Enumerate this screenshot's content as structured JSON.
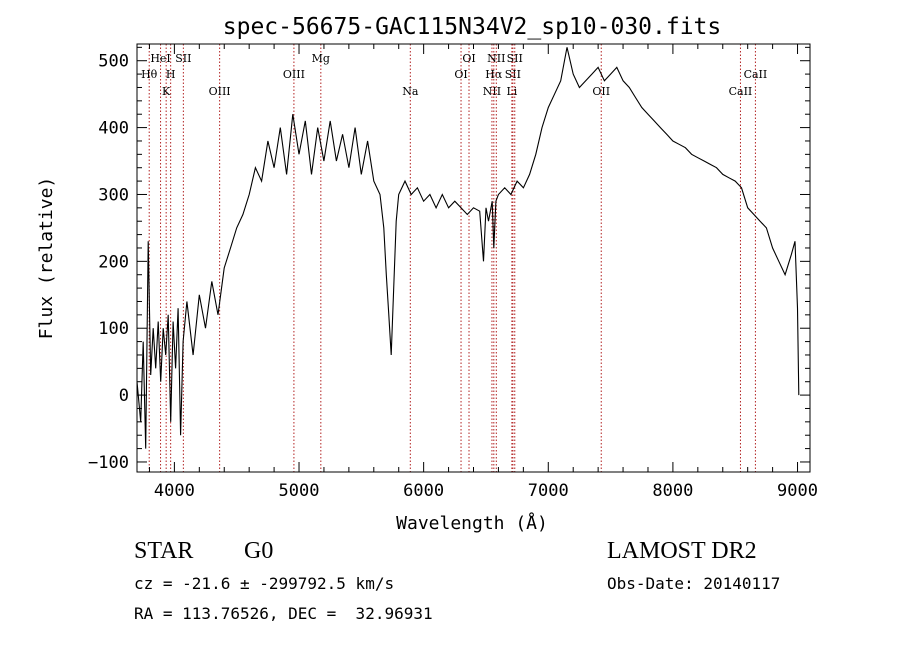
{
  "chart_data": {
    "type": "line",
    "title": "spec-56675-GAC115N34V2_sp10-030.fits",
    "xlabel": "Wavelength (Å)",
    "ylabel": "Flux (relative)",
    "xlim": [
      3700,
      9100
    ],
    "ylim": [
      -115,
      525
    ],
    "x_ticks": [
      4000,
      5000,
      6000,
      7000,
      8000,
      9000
    ],
    "y_ticks": [
      -100,
      0,
      100,
      200,
      300,
      400,
      500
    ],
    "grid": false,
    "series": [
      {
        "values": [
          [
            3700,
            20
          ],
          [
            3730,
            -40
          ],
          [
            3750,
            80
          ],
          [
            3770,
            -80
          ],
          [
            3790,
            230
          ],
          [
            3810,
            30
          ],
          [
            3830,
            100
          ],
          [
            3850,
            40
          ],
          [
            3870,
            110
          ],
          [
            3890,
            20
          ],
          [
            3910,
            100
          ],
          [
            3930,
            60
          ],
          [
            3950,
            120
          ],
          [
            3970,
            -40
          ],
          [
            3990,
            110
          ],
          [
            4010,
            40
          ],
          [
            4030,
            130
          ],
          [
            4050,
            -60
          ],
          [
            4070,
            80
          ],
          [
            4100,
            140
          ],
          [
            4150,
            60
          ],
          [
            4200,
            150
          ],
          [
            4250,
            100
          ],
          [
            4300,
            170
          ],
          [
            4350,
            120
          ],
          [
            4400,
            190
          ],
          [
            4450,
            220
          ],
          [
            4500,
            250
          ],
          [
            4550,
            270
          ],
          [
            4600,
            300
          ],
          [
            4650,
            340
          ],
          [
            4700,
            320
          ],
          [
            4750,
            380
          ],
          [
            4800,
            340
          ],
          [
            4850,
            400
          ],
          [
            4900,
            330
          ],
          [
            4950,
            420
          ],
          [
            5000,
            360
          ],
          [
            5050,
            410
          ],
          [
            5100,
            330
          ],
          [
            5150,
            400
          ],
          [
            5200,
            350
          ],
          [
            5250,
            410
          ],
          [
            5300,
            350
          ],
          [
            5350,
            390
          ],
          [
            5400,
            340
          ],
          [
            5450,
            400
          ],
          [
            5500,
            330
          ],
          [
            5550,
            380
          ],
          [
            5600,
            320
          ],
          [
            5650,
            300
          ],
          [
            5680,
            250
          ],
          [
            5700,
            180
          ],
          [
            5720,
            120
          ],
          [
            5740,
            60
          ],
          [
            5760,
            160
          ],
          [
            5780,
            260
          ],
          [
            5800,
            300
          ],
          [
            5850,
            320
          ],
          [
            5900,
            300
          ],
          [
            5950,
            310
          ],
          [
            6000,
            290
          ],
          [
            6050,
            300
          ],
          [
            6100,
            280
          ],
          [
            6150,
            300
          ],
          [
            6200,
            280
          ],
          [
            6250,
            290
          ],
          [
            6300,
            280
          ],
          [
            6350,
            270
          ],
          [
            6400,
            280
          ],
          [
            6450,
            275
          ],
          [
            6480,
            200
          ],
          [
            6500,
            280
          ],
          [
            6520,
            260
          ],
          [
            6550,
            290
          ],
          [
            6563,
            220
          ],
          [
            6580,
            290
          ],
          [
            6600,
            300
          ],
          [
            6650,
            310
          ],
          [
            6700,
            300
          ],
          [
            6750,
            320
          ],
          [
            6800,
            310
          ],
          [
            6850,
            330
          ],
          [
            6900,
            360
          ],
          [
            6950,
            400
          ],
          [
            7000,
            430
          ],
          [
            7050,
            450
          ],
          [
            7100,
            470
          ],
          [
            7150,
            520
          ],
          [
            7200,
            480
          ],
          [
            7250,
            460
          ],
          [
            7300,
            470
          ],
          [
            7350,
            480
          ],
          [
            7400,
            490
          ],
          [
            7450,
            470
          ],
          [
            7500,
            480
          ],
          [
            7550,
            490
          ],
          [
            7600,
            470
          ],
          [
            7650,
            460
          ],
          [
            7700,
            445
          ],
          [
            7750,
            430
          ],
          [
            7800,
            420
          ],
          [
            7850,
            410
          ],
          [
            7900,
            400
          ],
          [
            7950,
            390
          ],
          [
            8000,
            380
          ],
          [
            8050,
            375
          ],
          [
            8100,
            370
          ],
          [
            8150,
            360
          ],
          [
            8200,
            355
          ],
          [
            8250,
            350
          ],
          [
            8300,
            345
          ],
          [
            8350,
            340
          ],
          [
            8400,
            330
          ],
          [
            8450,
            325
          ],
          [
            8500,
            320
          ],
          [
            8550,
            310
          ],
          [
            8600,
            280
          ],
          [
            8650,
            270
          ],
          [
            8700,
            260
          ],
          [
            8750,
            250
          ],
          [
            8800,
            220
          ],
          [
            8850,
            200
          ],
          [
            8900,
            180
          ],
          [
            8950,
            210
          ],
          [
            8980,
            230
          ],
          [
            9000,
            130
          ],
          [
            9010,
            0
          ]
        ]
      }
    ],
    "lines": [
      {
        "x": 3798,
        "label": "Hθ",
        "row": 2
      },
      {
        "x": 3889,
        "label": "HeI",
        "row": 1
      },
      {
        "x": 3934,
        "label": "K",
        "row": 3
      },
      {
        "x": 3970,
        "label": "H",
        "row": 2
      },
      {
        "x": 4072,
        "label": "SII",
        "row": 1
      },
      {
        "x": 4363,
        "label": "OIII",
        "row": 3
      },
      {
        "x": 4959,
        "label": "OIII",
        "row": 2
      },
      {
        "x": 5175,
        "label": "Mg",
        "row": 1
      },
      {
        "x": 5893,
        "label": "Na",
        "row": 3
      },
      {
        "x": 6300,
        "label": "OI",
        "row": 2
      },
      {
        "x": 6364,
        "label": "OI",
        "row": 1
      },
      {
        "x": 6548,
        "label": "NII",
        "row": 3
      },
      {
        "x": 6563,
        "label": "Hα",
        "row": 2
      },
      {
        "x": 6583,
        "label": "NII",
        "row": 1
      },
      {
        "x": 6708,
        "label": "Li",
        "row": 3
      },
      {
        "x": 6716,
        "label": "SII",
        "row": 2
      },
      {
        "x": 6731,
        "label": "SII",
        "row": 1
      },
      {
        "x": 7425,
        "label": "OII",
        "row": 3
      },
      {
        "x": 8542,
        "label": "CaII",
        "row": 3
      },
      {
        "x": 8662,
        "label": "CaII",
        "row": 2
      }
    ]
  },
  "info": {
    "class": "STAR",
    "subclass": "G0",
    "survey": "LAMOST DR2",
    "cz": "cz = -21.6 ± -299792.5 km/s",
    "obs_date": "Obs-Date: 20140117",
    "coords": "RA = 113.76526, DEC =  32.96931"
  },
  "colors": {
    "spectrum": "#000000",
    "line_marker": "#b22222",
    "axes": "#000000"
  }
}
